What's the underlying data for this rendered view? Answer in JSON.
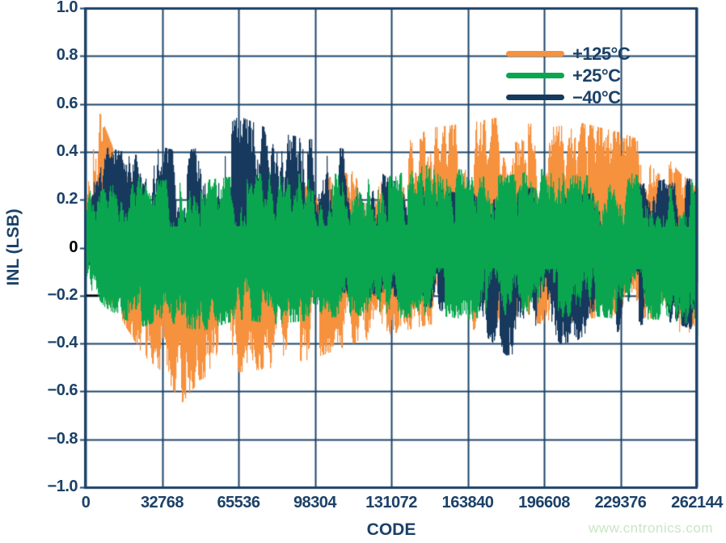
{
  "watermark": {
    "text": "www.cntronics.com",
    "color": "#c7e7c3"
  },
  "chart_data": {
    "type": "line",
    "subtype": "noise-band-envelope",
    "title": "",
    "xlabel": "CODE",
    "ylabel": "INL (LSB)",
    "xlim": [
      0,
      262144
    ],
    "ylim": [
      -1.0,
      1.0
    ],
    "grid": true,
    "legend_position": "top-right",
    "axis_color": "#1b4168",
    "grid_color": "#1d4569",
    "label_color": "#1b4168",
    "zero_label_color": "#000000",
    "background_color": "#ffffff",
    "x_ticks": [
      0,
      32768,
      65536,
      98304,
      131072,
      163840,
      196608,
      229376,
      262144
    ],
    "x_tick_labels": [
      "0",
      "32768",
      "65536",
      "98304",
      "131072",
      "163840",
      "196608",
      "229376",
      "262144"
    ],
    "y_ticks": [
      1.0,
      0.8,
      0.6,
      0.4,
      0.2,
      0,
      -0.2,
      -0.4,
      -0.6,
      -0.8,
      -1.0
    ],
    "y_tick_labels": [
      "1.0",
      "0.8",
      "0.6",
      "0.4",
      "0.2",
      "0",
      "−0.2",
      "−0.4",
      "−0.6",
      "−0.8",
      "−1.0"
    ],
    "black_segment": {
      "y": -0.2,
      "code_start": 0,
      "code_end": 15000,
      "color": "#000000"
    },
    "envelope_codes": [
      0,
      4096,
      8192,
      16384,
      24576,
      32768,
      40960,
      49152,
      65536,
      81920,
      98304,
      114688,
      131072,
      147456,
      163840,
      180224,
      196608,
      212992,
      229376,
      245760,
      253952,
      262144
    ],
    "series": [
      {
        "name": "+125°C",
        "color": "#f6913e",
        "seed": 7,
        "top_envelope": [
          0.35,
          0.62,
          0.5,
          0.3,
          0.28,
          0.22,
          0.18,
          0.15,
          0.15,
          0.18,
          0.28,
          0.32,
          0.4,
          0.5,
          0.52,
          0.55,
          0.5,
          0.52,
          0.48,
          0.42,
          0.32,
          0.25
        ],
        "bottom_envelope": [
          -0.1,
          -0.12,
          -0.22,
          -0.32,
          -0.45,
          -0.52,
          -0.65,
          -0.55,
          -0.52,
          -0.5,
          -0.46,
          -0.4,
          -0.36,
          -0.32,
          -0.35,
          -0.3,
          -0.32,
          -0.3,
          -0.28,
          -0.3,
          -0.52,
          -0.35
        ]
      },
      {
        "name": "+25°C",
        "color": "#0aa64f",
        "seed": 42,
        "top_envelope": [
          0.25,
          0.22,
          0.25,
          0.28,
          0.3,
          0.28,
          0.3,
          0.28,
          0.3,
          0.32,
          0.3,
          0.32,
          0.3,
          0.35,
          0.32,
          0.3,
          0.33,
          0.3,
          0.32,
          0.28,
          0.3,
          0.28
        ],
        "bottom_envelope": [
          -0.15,
          -0.2,
          -0.25,
          -0.3,
          -0.33,
          -0.3,
          -0.33,
          -0.35,
          -0.3,
          -0.32,
          -0.3,
          -0.28,
          -0.3,
          -0.28,
          -0.3,
          -0.28,
          -0.3,
          -0.28,
          -0.3,
          -0.3,
          -0.33,
          -0.38
        ]
      },
      {
        "name": "−40°C",
        "color": "#17395e",
        "seed": 1234,
        "top_envelope": [
          0.25,
          0.32,
          0.42,
          0.4,
          0.38,
          0.42,
          0.4,
          0.42,
          0.55,
          0.48,
          0.45,
          0.4,
          0.28,
          0.25,
          0.22,
          0.25,
          0.25,
          0.22,
          0.25,
          0.28,
          0.3,
          0.28
        ],
        "bottom_envelope": [
          -0.08,
          -0.1,
          -0.12,
          -0.15,
          -0.15,
          -0.18,
          -0.15,
          -0.15,
          -0.12,
          -0.12,
          -0.15,
          -0.2,
          -0.22,
          -0.25,
          -0.3,
          -0.45,
          -0.42,
          -0.38,
          -0.35,
          -0.3,
          -0.32,
          -0.35
        ]
      }
    ],
    "draw_order": [
      0,
      2,
      1
    ]
  }
}
